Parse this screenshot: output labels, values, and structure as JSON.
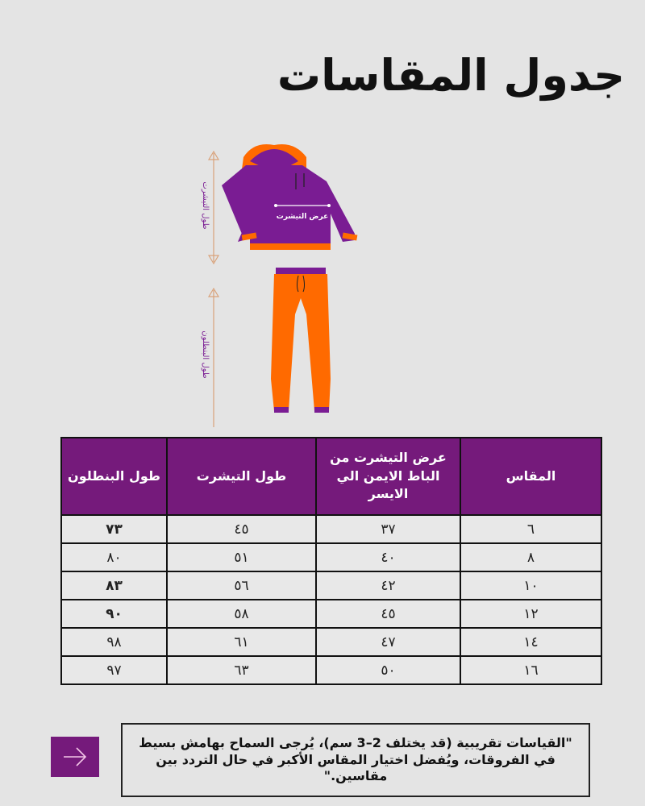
{
  "title": "جدول المقاسات",
  "illustration": {
    "shirt_width_label": "عرض التيشرت",
    "shirt_length_label": "طول التيشرت",
    "pants_length_label": "طول البنطلون",
    "colors": {
      "purple": "#7a1c93",
      "orange": "#ff6a00"
    }
  },
  "table": {
    "headers": [
      "المقاس",
      "عرض التيشرت من الباط الايمن الي الايسر",
      "طول التيشرت",
      "طول البنطلون"
    ],
    "rows": [
      [
        "٦",
        "٣٧",
        "٤٥",
        "٧٣"
      ],
      [
        "٨",
        "٤٠",
        "٥١",
        "٨٠"
      ],
      [
        "١٠",
        "٤٢",
        "٥٦",
        "٨٣"
      ],
      [
        "١٢",
        "٤٥",
        "٥٨",
        "٩٠"
      ],
      [
        "١٤",
        "٤٧",
        "٦١",
        "٩٨"
      ],
      [
        "١٦",
        "٥٠",
        "٦٣",
        "٩٧"
      ]
    ]
  },
  "note": "\"القياسات تقريبية (قد يختلف 2–3 سم)، يُرجى السماح بهامش بسيط في الفروقات، ويُفضل اختيار المقاس الأكبر في حال التردد بين مقاسين.\"",
  "next_button": {
    "icon": "arrow-right-icon"
  },
  "accent_color": "#751a7b"
}
